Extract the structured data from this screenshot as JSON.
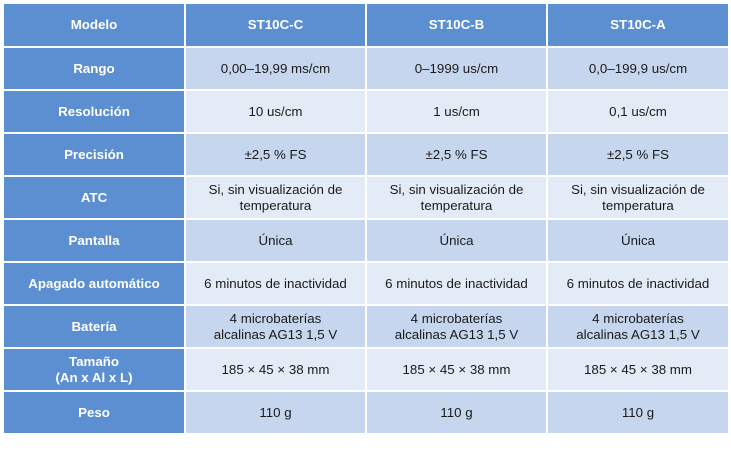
{
  "table": {
    "header": {
      "model_label": "Modelo",
      "models": [
        "ST10C-C",
        "ST10C-B",
        "ST10C-A"
      ]
    },
    "rows": [
      {
        "label": "Rango",
        "values": [
          "0,00–19,99 ms/cm",
          "0–1999 us/cm",
          "0,0–199,9 us/cm"
        ]
      },
      {
        "label": "Resolución",
        "values": [
          "10 us/cm",
          "1 us/cm",
          "0,1 us/cm"
        ]
      },
      {
        "label": "Precisión",
        "values": [
          "±2,5 % FS",
          "±2,5 % FS",
          "±2,5 % FS"
        ]
      },
      {
        "label": "ATC",
        "values": [
          "Si, sin visualización de\ntemperatura",
          "Si, sin visualización de\ntemperatura",
          "Si, sin visualización de\ntemperatura"
        ]
      },
      {
        "label": "Pantalla",
        "values": [
          "Única",
          "Única",
          "Única"
        ]
      },
      {
        "label": "Apagado automático",
        "values": [
          "6 minutos de inactividad",
          "6 minutos de inactividad",
          "6 minutos de inactividad"
        ]
      },
      {
        "label": "Batería",
        "values": [
          "4 microbaterías\nalcalinas AG13 1,5 V",
          "4 microbaterías\nalcalinas AG13 1,5 V",
          "4 microbaterías\nalcalinas AG13 1,5 V"
        ]
      },
      {
        "label": "Tamaño\n(An x Al x L)",
        "values": [
          "185 × 45 × 38 mm",
          "185 × 45 × 38 mm",
          "185 × 45 × 38 mm"
        ]
      },
      {
        "label": "Peso",
        "values": [
          "110 g",
          "110 g",
          "110 g"
        ]
      }
    ]
  },
  "colors": {
    "header_bg": "#5b8fd1",
    "row_odd_bg": "#c5d6ee",
    "row_even_bg": "#e3ebf6"
  }
}
